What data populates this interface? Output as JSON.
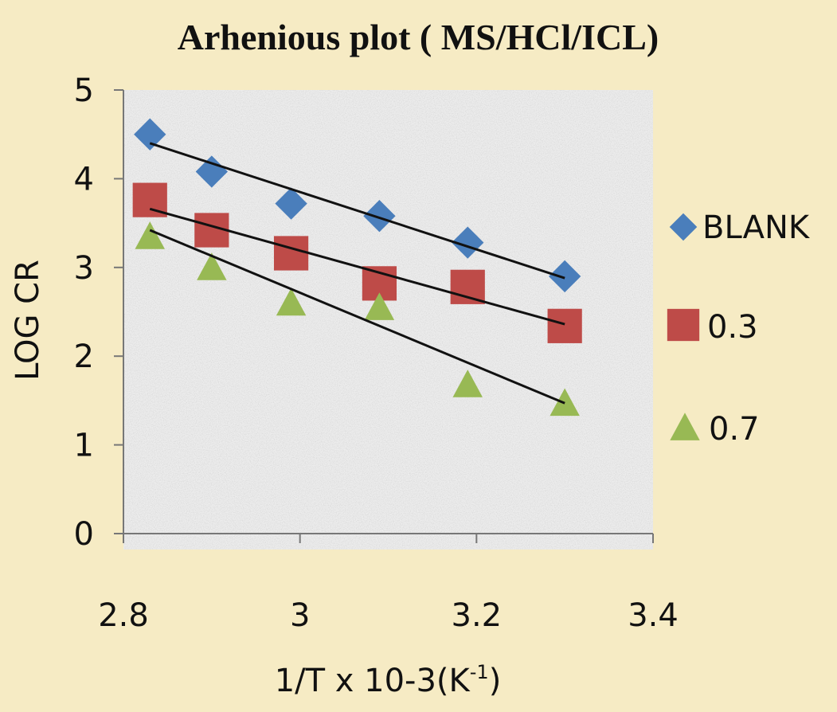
{
  "chart_data": {
    "type": "scatter",
    "title": "Arhenious plot ( MS/HCl/ICL)",
    "xlabel_main": "1/T x 10-3(K",
    "xlabel_sup": "-1",
    "xlabel_close": ")",
    "ylabel": "LOG CR",
    "xlim": [
      2.8,
      3.4
    ],
    "ylim": [
      0,
      5
    ],
    "x_ticks": [
      {
        "value": 2.8,
        "label": "2.8"
      },
      {
        "value": 3.0,
        "label": "3"
      },
      {
        "value": 3.2,
        "label": "3.2"
      },
      {
        "value": 3.4,
        "label": "3.4"
      }
    ],
    "y_ticks": [
      {
        "value": 0,
        "label": "0"
      },
      {
        "value": 1,
        "label": "1"
      },
      {
        "value": 2,
        "label": "2"
      },
      {
        "value": 3,
        "label": "3"
      },
      {
        "value": 4,
        "label": "4"
      },
      {
        "value": 5,
        "label": "5"
      }
    ],
    "grid": false,
    "legend_position": "right",
    "series": [
      {
        "name": "BLANK",
        "marker": "diamond",
        "color": "#4a7ebb",
        "points": [
          [
            2.83,
            4.5
          ],
          [
            2.9,
            4.08
          ],
          [
            2.99,
            3.72
          ],
          [
            3.09,
            3.58
          ],
          [
            3.19,
            3.28
          ],
          [
            3.3,
            2.9
          ]
        ],
        "trendline": [
          [
            2.83,
            4.4
          ],
          [
            3.3,
            2.88
          ]
        ]
      },
      {
        "name": "0.3",
        "marker": "square",
        "color": "#be4b48",
        "points": [
          [
            2.83,
            3.76
          ],
          [
            2.9,
            3.42
          ],
          [
            2.99,
            3.16
          ],
          [
            3.09,
            2.82
          ],
          [
            3.19,
            2.78
          ],
          [
            3.3,
            2.34
          ]
        ],
        "trendline": [
          [
            2.83,
            3.66
          ],
          [
            3.3,
            2.36
          ]
        ]
      },
      {
        "name": "0.7",
        "marker": "triangle",
        "color": "#98b954",
        "points": [
          [
            2.83,
            3.35
          ],
          [
            2.9,
            3.0
          ],
          [
            2.99,
            2.6
          ],
          [
            3.09,
            2.55
          ],
          [
            3.19,
            1.68
          ],
          [
            3.3,
            1.47
          ]
        ],
        "trendline": [
          [
            2.83,
            3.42
          ],
          [
            3.3,
            1.47
          ]
        ]
      }
    ]
  }
}
